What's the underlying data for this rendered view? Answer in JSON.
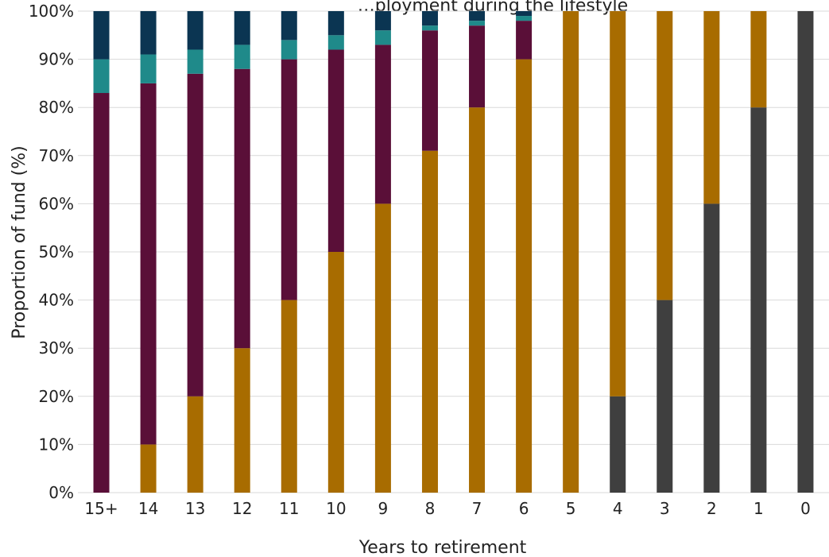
{
  "chart_data": {
    "type": "bar",
    "stacked": true,
    "title": "…ployment during the lifestyle",
    "xlabel": "Years to retirement",
    "ylabel": "Proportion of fund (%)",
    "ylim": [
      0,
      100
    ],
    "y_ticks": [
      "0%",
      "10%",
      "20%",
      "30%",
      "40%",
      "50%",
      "60%",
      "70%",
      "80%",
      "90%",
      "100%"
    ],
    "grid": true,
    "legend": "none",
    "categories": [
      "15+",
      "14",
      "13",
      "12",
      "11",
      "10",
      "9",
      "8",
      "7",
      "6",
      "5",
      "4",
      "3",
      "2",
      "1",
      "0"
    ],
    "series": [
      {
        "color": "#3f3f3f",
        "values": [
          0,
          0,
          0,
          0,
          0,
          0,
          0,
          0,
          0,
          0,
          0,
          20,
          40,
          60,
          80,
          100
        ]
      },
      {
        "color": "#a86c00",
        "values": [
          0,
          10,
          20,
          30,
          40,
          50,
          60,
          71,
          80,
          90,
          100,
          80,
          60,
          40,
          20,
          0
        ]
      },
      {
        "color": "#5a0f38",
        "values": [
          83,
          75,
          67,
          58,
          50,
          42,
          33,
          25,
          17,
          8,
          0,
          0,
          0,
          0,
          0,
          0
        ]
      },
      {
        "color": "#1f8a8a",
        "values": [
          7,
          6,
          5,
          5,
          4,
          3,
          3,
          1,
          1,
          1,
          0,
          0,
          0,
          0,
          0,
          0
        ]
      },
      {
        "color": "#0b3552",
        "values": [
          10,
          9,
          8,
          7,
          6,
          5,
          4,
          3,
          2,
          1,
          0,
          0,
          0,
          0,
          0,
          0
        ]
      }
    ]
  }
}
